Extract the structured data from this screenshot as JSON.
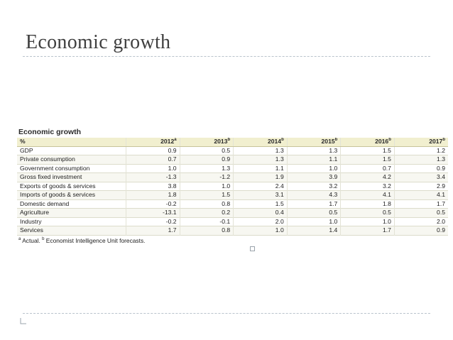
{
  "slide": {
    "title": "Economic growth"
  },
  "table": {
    "title": "Economic growth",
    "unit_label": "%",
    "columns": [
      {
        "year": "2012",
        "sup": "a"
      },
      {
        "year": "2013",
        "sup": "b"
      },
      {
        "year": "2014",
        "sup": "b"
      },
      {
        "year": "2015",
        "sup": "b"
      },
      {
        "year": "2016",
        "sup": "b"
      },
      {
        "year": "2017",
        "sup": "b"
      }
    ],
    "rows": [
      {
        "label": "GDP",
        "values": [
          "0.9",
          "0.5",
          "1.3",
          "1.3",
          "1.5",
          "1.2"
        ]
      },
      {
        "label": "Private consumption",
        "values": [
          "0.7",
          "0.9",
          "1.3",
          "1.1",
          "1.5",
          "1.3"
        ]
      },
      {
        "label": "Government consumption",
        "values": [
          "1.0",
          "1.3",
          "1.1",
          "1.0",
          "0.7",
          "0.9"
        ]
      },
      {
        "label": "Gross fixed investment",
        "values": [
          "-1.3",
          "-1.2",
          "1.9",
          "3.9",
          "4.2",
          "3.4"
        ]
      },
      {
        "label": "Exports of goods & services",
        "values": [
          "3.8",
          "1.0",
          "2.4",
          "3.2",
          "3.2",
          "2.9"
        ]
      },
      {
        "label": "Imports of goods & services",
        "values": [
          "1.8",
          "1.5",
          "3.1",
          "4.3",
          "4.1",
          "4.1"
        ]
      },
      {
        "label": "Domestic demand",
        "values": [
          "-0.2",
          "0.8",
          "1.5",
          "1.7",
          "1.8",
          "1.7"
        ]
      },
      {
        "label": "Agriculture",
        "values": [
          "-13.1",
          "0.2",
          "0.4",
          "0.5",
          "0.5",
          "0.5"
        ]
      },
      {
        "label": "Industry",
        "values": [
          "-0.2",
          "-0.1",
          "2.0",
          "1.0",
          "1.0",
          "2.0"
        ]
      },
      {
        "label": "Services",
        "values": [
          "1.7",
          "0.8",
          "1.0",
          "1.4",
          "1.7",
          "0.9"
        ]
      }
    ],
    "footnote": {
      "a_mark": "a",
      "a_text": " Actual. ",
      "b_mark": "b",
      "b_text": " Economist Intelligence Unit forecasts."
    }
  },
  "icons": {
    "slide_marker": "small-square-icon",
    "corner": "corner-bracket-icon"
  }
}
